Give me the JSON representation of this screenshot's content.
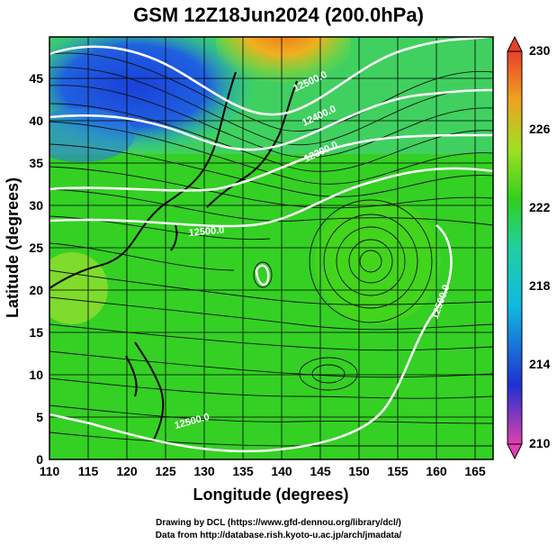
{
  "title": "GSM 12Z18Jun2024 (200.0hPa)",
  "xlabel": "Longitude (degrees)",
  "ylabel": "Latitude (degrees)",
  "x_ticks": [
    "110",
    "115",
    "120",
    "125",
    "130",
    "135",
    "140",
    "145",
    "150",
    "155",
    "160",
    "165"
  ],
  "y_ticks": [
    "0",
    "5",
    "10",
    "15",
    "20",
    "25",
    "30",
    "35",
    "40",
    "45"
  ],
  "colorbar_ticks": [
    "230",
    "226",
    "222",
    "218",
    "214",
    "210"
  ],
  "contour_labels": [
    "12500.0",
    "12400.0",
    "12300.0",
    "12500.0",
    "12500.0",
    "12500.0"
  ],
  "credit_line1": "Drawing by DCL (https://www.gfd-dennou.org/library/dcl/)",
  "credit_line2": "Data from http://database.rish.kyoto-u.ac.jp/arch/jmadata/",
  "colors": {
    "high": "#e8402a",
    "mid_high": "#f0a020",
    "mid": "#2fd020",
    "cool": "#10b8e0",
    "low": "#2030d0",
    "lowest": "#e040b0"
  }
}
